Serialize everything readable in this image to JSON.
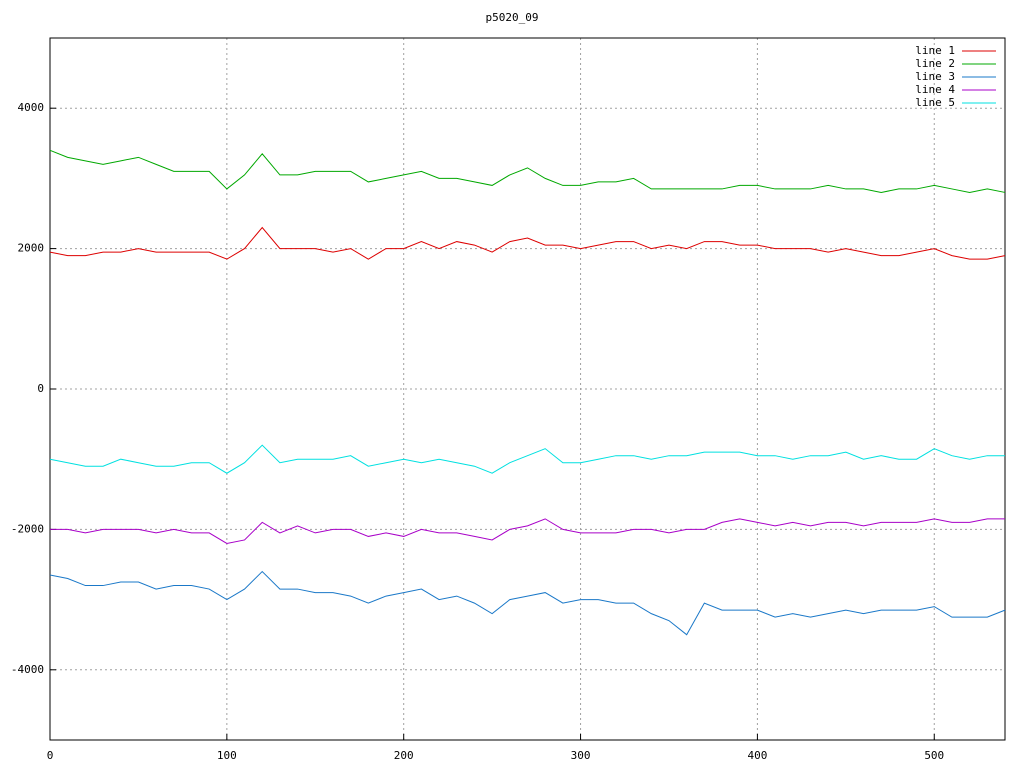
{
  "chart_data": {
    "type": "line",
    "title": "p5020_09",
    "x": [
      0,
      10,
      20,
      30,
      40,
      50,
      60,
      70,
      80,
      90,
      100,
      110,
      120,
      130,
      140,
      150,
      160,
      170,
      180,
      190,
      200,
      210,
      220,
      230,
      240,
      250,
      260,
      270,
      280,
      290,
      300,
      310,
      320,
      330,
      340,
      350,
      360,
      370,
      380,
      390,
      400,
      410,
      420,
      430,
      440,
      450,
      460,
      470,
      480,
      490,
      500,
      510,
      520,
      530,
      540
    ],
    "series": [
      {
        "name": "line 1",
        "color": "#dd0000",
        "values": [
          1950,
          1900,
          1900,
          1950,
          1950,
          2000,
          1950,
          1950,
          1950,
          1950,
          1850,
          2000,
          2300,
          2000,
          2000,
          2000,
          1950,
          2000,
          1850,
          2000,
          2000,
          2100,
          2000,
          2100,
          2050,
          1950,
          2100,
          2150,
          2050,
          2050,
          2000,
          2050,
          2100,
          2100,
          2000,
          2050,
          2000,
          2100,
          2100,
          2050,
          2050,
          2000,
          2000,
          2000,
          1950,
          2000,
          1950,
          1900,
          1900,
          1950,
          2000,
          1900,
          1850,
          1850,
          1900
        ]
      },
      {
        "name": "line 2",
        "color": "#00a800",
        "values": [
          3400,
          3300,
          3250,
          3200,
          3250,
          3300,
          3200,
          3100,
          3100,
          3100,
          2850,
          3050,
          3350,
          3050,
          3050,
          3100,
          3100,
          3100,
          2950,
          3000,
          3050,
          3100,
          3000,
          3000,
          2950,
          2900,
          3050,
          3150,
          3000,
          2900,
          2900,
          2950,
          2950,
          3000,
          2850,
          2850,
          2850,
          2850,
          2850,
          2900,
          2900,
          2850,
          2850,
          2850,
          2900,
          2850,
          2850,
          2800,
          2850,
          2850,
          2900,
          2850,
          2800,
          2850,
          2800
        ]
      },
      {
        "name": "line 3",
        "color": "#1a78c8",
        "values": [
          -2650,
          -2700,
          -2800,
          -2800,
          -2750,
          -2750,
          -2850,
          -2800,
          -2800,
          -2850,
          -3000,
          -2850,
          -2600,
          -2850,
          -2850,
          -2900,
          -2900,
          -2950,
          -3050,
          -2950,
          -2900,
          -2850,
          -3000,
          -2950,
          -3050,
          -3200,
          -3000,
          -2950,
          -2900,
          -3050,
          -3000,
          -3000,
          -3050,
          -3050,
          -3200,
          -3300,
          -3500,
          -3050,
          -3150,
          -3150,
          -3150,
          -3250,
          -3200,
          -3250,
          -3200,
          -3150,
          -3200,
          -3150,
          -3150,
          -3150,
          -3100,
          -3250,
          -3250,
          -3250,
          -3150
        ]
      },
      {
        "name": "line 4",
        "color": "#a800c8",
        "values": [
          -2000,
          -2000,
          -2050,
          -2000,
          -2000,
          -2000,
          -2050,
          -2000,
          -2050,
          -2050,
          -2200,
          -2150,
          -1900,
          -2050,
          -1950,
          -2050,
          -2000,
          -2000,
          -2100,
          -2050,
          -2100,
          -2000,
          -2050,
          -2050,
          -2100,
          -2150,
          -2000,
          -1950,
          -1850,
          -2000,
          -2050,
          -2050,
          -2050,
          -2000,
          -2000,
          -2050,
          -2000,
          -2000,
          -1900,
          -1850,
          -1900,
          -1950,
          -1900,
          -1950,
          -1900,
          -1900,
          -1950,
          -1900,
          -1900,
          -1900,
          -1850,
          -1900,
          -1900,
          -1850,
          -1850
        ]
      },
      {
        "name": "line 5",
        "color": "#00e0e0",
        "values": [
          -1000,
          -1050,
          -1100,
          -1100,
          -1000,
          -1050,
          -1100,
          -1100,
          -1050,
          -1050,
          -1200,
          -1050,
          -800,
          -1050,
          -1000,
          -1000,
          -1000,
          -950,
          -1100,
          -1050,
          -1000,
          -1050,
          -1000,
          -1050,
          -1100,
          -1200,
          -1050,
          -950,
          -850,
          -1050,
          -1050,
          -1000,
          -950,
          -950,
          -1000,
          -950,
          -950,
          -900,
          -900,
          -900,
          -950,
          -950,
          -1000,
          -950,
          -950,
          -900,
          -1000,
          -950,
          -1000,
          -1000,
          -850,
          -950,
          -1000,
          -950,
          -950
        ]
      }
    ],
    "xlim": [
      0,
      540
    ],
    "ylim": [
      -5000,
      5000
    ],
    "xticks": [
      0,
      100,
      200,
      300,
      400,
      500
    ],
    "yticks": [
      -4000,
      -2000,
      0,
      2000,
      4000
    ],
    "grid": true,
    "legend": "top-right"
  }
}
